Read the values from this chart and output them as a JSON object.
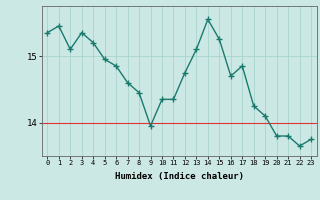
{
  "x": [
    0,
    1,
    2,
    3,
    4,
    5,
    6,
    7,
    8,
    9,
    10,
    11,
    12,
    13,
    14,
    15,
    16,
    17,
    18,
    19,
    20,
    21,
    22,
    23
  ],
  "y": [
    15.35,
    15.45,
    15.1,
    15.35,
    15.2,
    14.95,
    14.85,
    14.6,
    14.45,
    13.95,
    14.35,
    14.35,
    14.75,
    15.1,
    15.55,
    15.25,
    14.7,
    14.85,
    14.25,
    14.1,
    13.8,
    13.8,
    13.65,
    13.75
  ],
  "xlim": [
    -0.5,
    23.5
  ],
  "ylim": [
    13.5,
    15.75
  ],
  "yticks": [
    14,
    15
  ],
  "xticks": [
    0,
    1,
    2,
    3,
    4,
    5,
    6,
    7,
    8,
    9,
    10,
    11,
    12,
    13,
    14,
    15,
    16,
    17,
    18,
    19,
    20,
    21,
    22,
    23
  ],
  "xlabel": "Humidex (Indice chaleur)",
  "line_color": "#1a7a6e",
  "bg_color": "#cce8e4",
  "grid_color": "#aad4cf",
  "hline_color": "#dd3333",
  "hline_y": 14,
  "marker": "+",
  "markersize": 4,
  "linewidth": 1.0,
  "xlabel_fontsize": 6.5,
  "xtick_fontsize": 5.0,
  "ytick_fontsize": 6.5
}
